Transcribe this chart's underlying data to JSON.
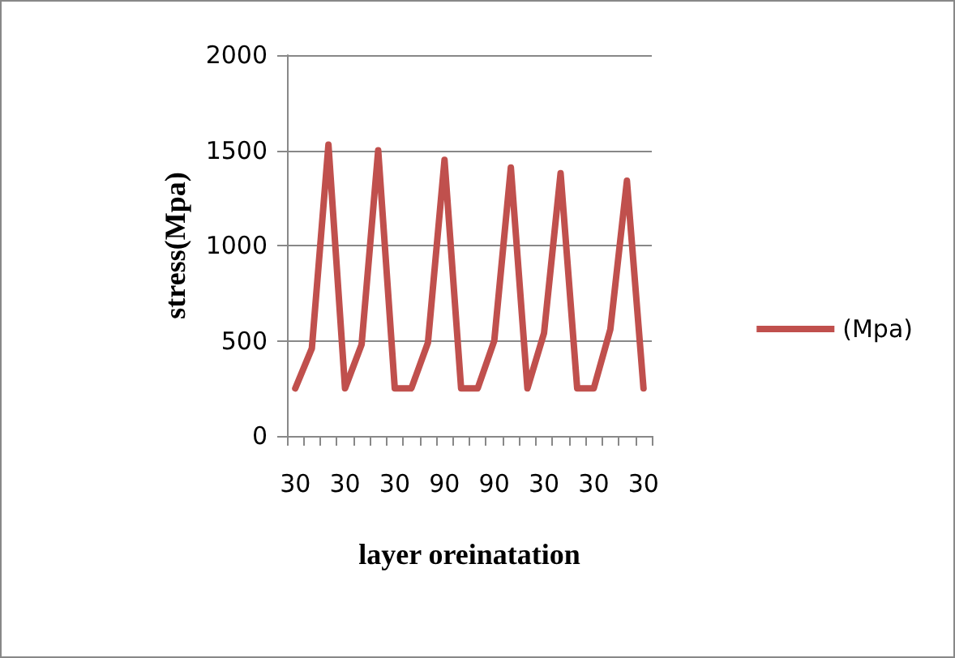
{
  "chart_data": {
    "type": "line",
    "xlabel": "layer oreinatation",
    "ylabel": "stress(Mpa)",
    "categories": [
      "30",
      null,
      null,
      "30",
      null,
      null,
      "30",
      null,
      null,
      "90",
      null,
      null,
      "90",
      null,
      null,
      "30",
      null,
      null,
      "30",
      null,
      null,
      "30"
    ],
    "series": [
      {
        "name": "(Mpa)",
        "color": "#c0504d",
        "values": [
          250,
          460,
          1530,
          250,
          480,
          1500,
          250,
          250,
          490,
          1450,
          250,
          250,
          500,
          1410,
          250,
          540,
          1380,
          250,
          250,
          560,
          1340,
          250
        ]
      }
    ],
    "ylim": [
      0,
      2000
    ],
    "yticks": [
      0,
      500,
      1000,
      1500,
      2000
    ],
    "grid": "y",
    "legend": "right",
    "marker": "none",
    "line_style": "solid"
  }
}
